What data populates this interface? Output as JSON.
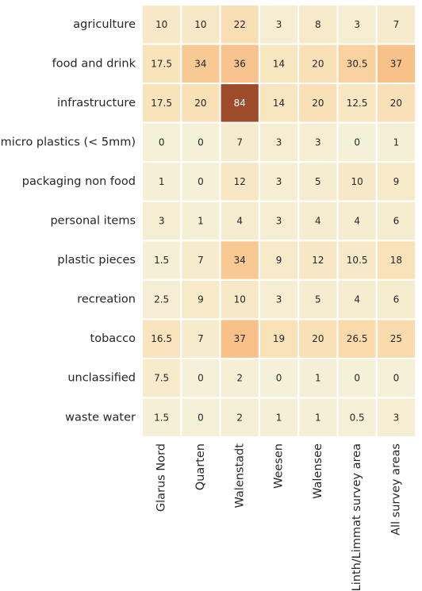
{
  "chart_data": {
    "type": "heatmap",
    "rows": [
      "agriculture",
      "food and drink",
      "infrastructure",
      "micro plastics (< 5mm)",
      "packaging non food",
      "personal items",
      "plastic pieces",
      "recreation",
      "tobacco",
      "unclassified",
      "waste water"
    ],
    "columns": [
      "Glarus Nord",
      "Quarten",
      "Walenstadt",
      "Weesen",
      "Walensee",
      "Linth/Limmat survey area",
      "All survey areas"
    ],
    "values": [
      [
        10,
        10,
        22,
        3,
        8,
        3,
        7
      ],
      [
        17.5,
        34,
        36,
        14,
        20,
        30.5,
        37
      ],
      [
        17.5,
        20,
        84,
        14,
        20,
        12.5,
        20
      ],
      [
        0,
        0,
        7,
        3,
        3,
        0,
        1
      ],
      [
        1,
        0,
        12,
        3,
        5,
        10,
        9
      ],
      [
        3,
        1,
        4,
        3,
        4,
        4,
        6
      ],
      [
        1.5,
        7,
        34,
        9,
        12,
        10.5,
        18
      ],
      [
        2.5,
        9,
        10,
        3,
        5,
        4,
        6
      ],
      [
        16.5,
        7,
        37,
        19,
        20,
        26.5,
        25
      ],
      [
        7.5,
        0,
        2,
        0,
        1,
        0,
        0
      ],
      [
        1.5,
        0,
        2,
        1,
        1,
        0.5,
        3
      ]
    ],
    "value_range": [
      0,
      84
    ],
    "colormap": [
      "#f5f0d8",
      "#f8e6c1",
      "#fbd8a8",
      "#f6b47a",
      "#e58d55",
      "#c0653a",
      "#9e4b2a"
    ],
    "legend": "none",
    "grid": false
  }
}
